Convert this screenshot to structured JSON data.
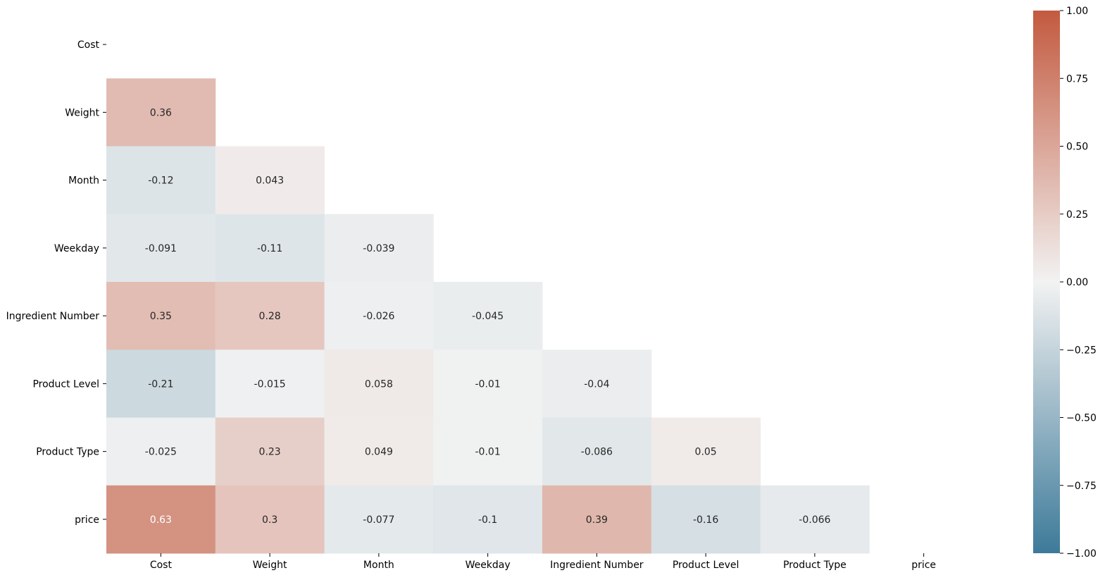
{
  "chart_data": {
    "type": "heatmap",
    "title": "",
    "xlabel": "",
    "ylabel": "",
    "rows": [
      "Cost",
      "Weight",
      "Month",
      "Weekday",
      "Ingredient Number",
      "Product Level",
      "Product Type",
      "price"
    ],
    "columns": [
      "Cost",
      "Weight",
      "Month",
      "Weekday",
      "Ingredient Number",
      "Product Level",
      "Product Type",
      "price"
    ],
    "mask": "upper-triangle-including-diagonal",
    "values": [
      [
        null,
        null,
        null,
        null,
        null,
        null,
        null,
        null
      ],
      [
        0.36,
        null,
        null,
        null,
        null,
        null,
        null,
        null
      ],
      [
        -0.12,
        0.043,
        null,
        null,
        null,
        null,
        null,
        null
      ],
      [
        -0.091,
        -0.11,
        -0.039,
        null,
        null,
        null,
        null,
        null
      ],
      [
        0.35,
        0.28,
        -0.026,
        -0.045,
        null,
        null,
        null,
        null
      ],
      [
        -0.21,
        -0.015,
        0.058,
        -0.01,
        -0.04,
        null,
        null,
        null
      ],
      [
        -0.025,
        0.23,
        0.049,
        -0.01,
        -0.086,
        0.05,
        null,
        null
      ],
      [
        0.63,
        0.3,
        -0.077,
        -0.1,
        0.39,
        -0.16,
        -0.066,
        null
      ]
    ],
    "value_labels": [
      [
        null,
        null,
        null,
        null,
        null,
        null,
        null,
        null
      ],
      [
        "0.36",
        null,
        null,
        null,
        null,
        null,
        null,
        null
      ],
      [
        "-0.12",
        "0.043",
        null,
        null,
        null,
        null,
        null,
        null
      ],
      [
        "-0.091",
        "-0.11",
        "-0.039",
        null,
        null,
        null,
        null,
        null
      ],
      [
        "0.35",
        "0.28",
        "-0.026",
        "-0.045",
        null,
        null,
        null,
        null
      ],
      [
        "-0.21",
        "-0.015",
        "0.058",
        "-0.01",
        "-0.04",
        null,
        null,
        null
      ],
      [
        "-0.025",
        "0.23",
        "0.049",
        "-0.01",
        "-0.086",
        "0.05",
        null,
        null
      ],
      [
        "0.63",
        "0.3",
        "-0.077",
        "-0.1",
        "0.39",
        "-0.16",
        "-0.066",
        null
      ]
    ],
    "colorbar": {
      "vmin": -1.0,
      "vmax": 1.0,
      "ticks": [
        1.0,
        0.75,
        0.5,
        0.25,
        0.0,
        -0.25,
        -0.5,
        -0.75,
        -1.0
      ],
      "tick_labels": [
        "1.00",
        "0.75",
        "0.50",
        "0.25",
        "0.00",
        "−0.25",
        "−0.50",
        "−0.75",
        "−1.00"
      ],
      "colors": {
        "negative_end": "#3d7a99",
        "center": "#f2f2f2",
        "positive_end": "#c35a3f"
      }
    },
    "grid": false,
    "legend": "colorbar-right"
  }
}
